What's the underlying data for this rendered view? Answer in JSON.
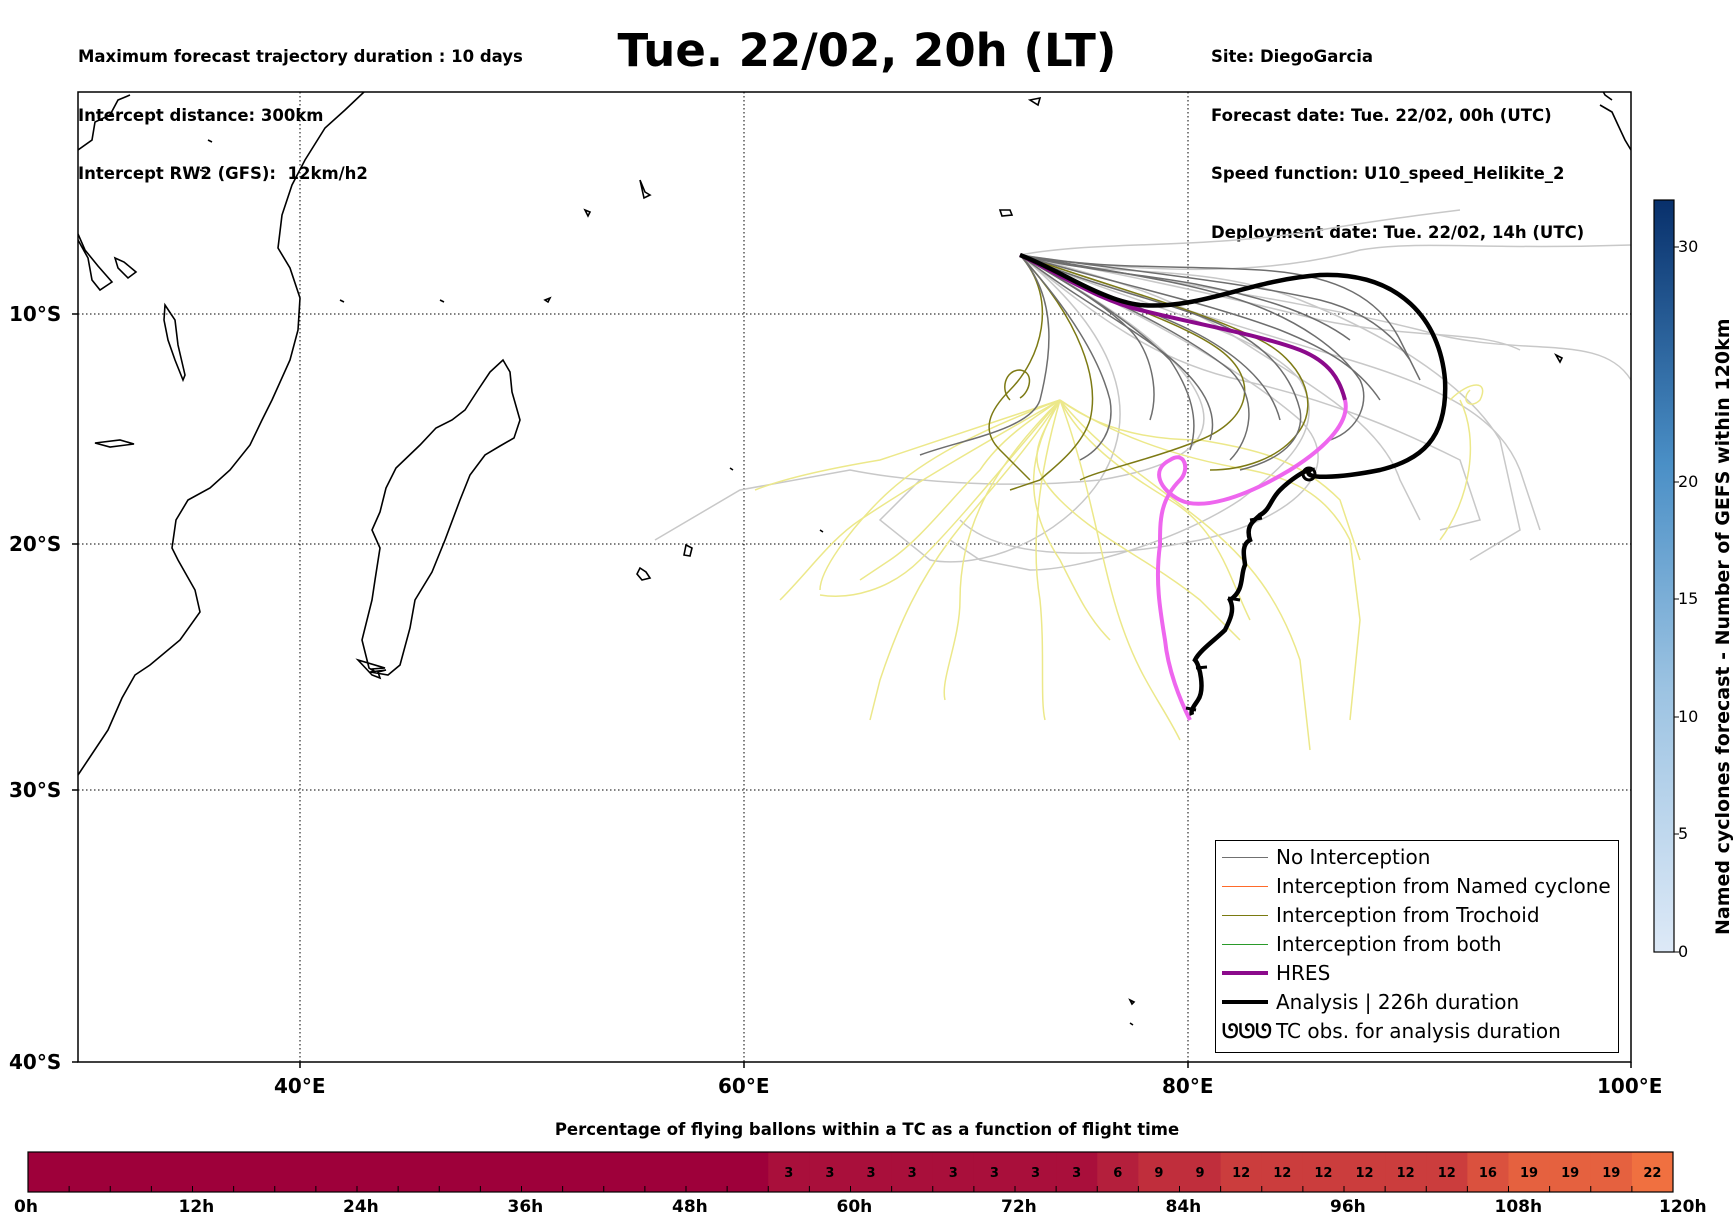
{
  "header": {
    "left_lines": [
      "Maximum forecast trajectory duration : 10 days",
      "Intercept distance: 300km",
      "Intercept RW2 (GFS):  12km/h2"
    ],
    "title": "Tue. 22/02, 20h (LT)",
    "right_lines": [
      "Site: DiegoGarcia",
      "Forecast date: Tue. 22/02, 00h (UTC)",
      "Speed function: U10_speed_Helikite_2",
      "Deployment date: Tue. 22/02, 14h (UTC)"
    ]
  },
  "map": {
    "lon_range": [
      30,
      100
    ],
    "lat_range": [
      -40,
      0
    ],
    "lon_ticks": [
      {
        "value": 40,
        "label": "40°E"
      },
      {
        "value": 60,
        "label": "60°E"
      },
      {
        "value": 80,
        "label": "80°E"
      },
      {
        "value": 100,
        "label": "100°E"
      }
    ],
    "lat_ticks": [
      {
        "value": -10,
        "label": "10°S"
      },
      {
        "value": -20,
        "label": "20°S"
      },
      {
        "value": -30,
        "label": "30°S"
      },
      {
        "value": -40,
        "label": "40°S"
      }
    ],
    "grid": "dotted"
  },
  "legend": {
    "items": [
      {
        "label": "No Interception",
        "color": "#707070"
      },
      {
        "label": "Interception from Named cyclone",
        "color": "#ff6a2a"
      },
      {
        "label": "Interception from Trochoid",
        "color": "#7a7a10"
      },
      {
        "label": "Interception from both",
        "color": "#2a9a2a"
      },
      {
        "label": "HRES",
        "color": "#8b0a8b"
      },
      {
        "label": "Analysis | 226h duration",
        "color": "#000000"
      },
      {
        "label": "TC obs. for analysis duration",
        "color": "#000000",
        "icon": "tc-symbol-icon"
      }
    ],
    "tc_symbol": "ᘎᘎᘎ"
  },
  "colorbar_right": {
    "title": "Named cyclones forecast - Number of GEFS within 120km",
    "range": [
      0,
      32
    ],
    "ticks": [
      "0",
      "5",
      "10",
      "15",
      "20",
      "30"
    ],
    "color_low": "#dde9f7",
    "color_high": "#08306b"
  },
  "percent_bar": {
    "title": "Percentage of flying ballons within a TC as a function of flight time",
    "time_labels": [
      "0h",
      "12h",
      "24h",
      "36h",
      "48h",
      "60h",
      "72h",
      "84h",
      "96h",
      "108h",
      "120h"
    ],
    "values": [
      "",
      "",
      "",
      "",
      "",
      "",
      "",
      "",
      "",
      "",
      "",
      "",
      "",
      "",
      "",
      "",
      "",
      "",
      "3",
      "3",
      "3",
      "3",
      "3",
      "3",
      "3",
      "3",
      "6",
      "9",
      "9",
      "12",
      "12",
      "12",
      "12",
      "12",
      "12",
      "16",
      "19",
      "19",
      "19",
      "22"
    ],
    "color_dark": "#9e003a",
    "color_light": "#f07040"
  },
  "trajectory_colors": {
    "no_interception": "#6e6e6e",
    "light_gray": "#c8c8c8",
    "trochoid": "#7d7a14",
    "light_yellow": "#ece88a",
    "hres": "#8b0a8b",
    "hres_pink": "#ee66ee",
    "analysis": "#000000"
  }
}
